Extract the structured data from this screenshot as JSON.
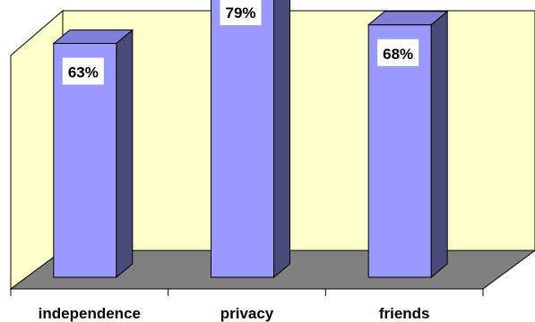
{
  "chart_data": {
    "type": "bar",
    "style": "3d-column",
    "categories": [
      "independence",
      "privacy",
      "friends"
    ],
    "values": [
      63,
      79,
      68
    ],
    "data_labels": [
      "63%",
      "79%",
      "68%"
    ],
    "ylim": [
      0,
      100
    ],
    "title": "",
    "xlabel": "",
    "ylabel": "",
    "grid": false,
    "legend": "none",
    "colors": {
      "wall": "#ffffcc",
      "floor": "#808080",
      "bar_front": "#9999ff",
      "bar_side": "#4a4a7a",
      "bar_top": "#7f7fd6",
      "label_box": "#ffffff"
    }
  }
}
